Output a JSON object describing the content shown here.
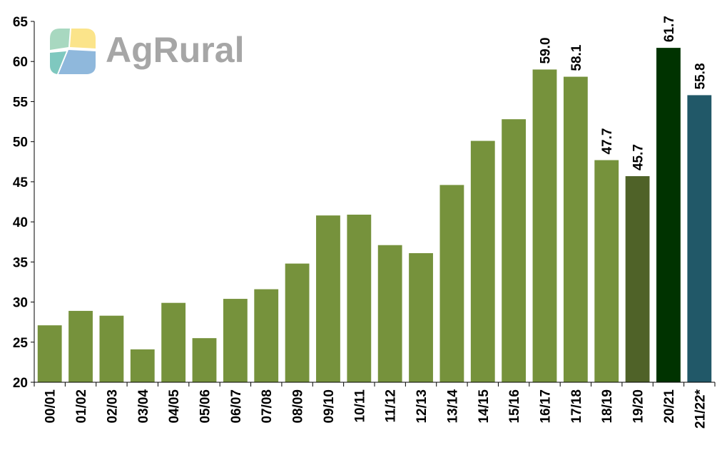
{
  "logo": {
    "text": "AgRural",
    "colors": [
      "#a8d8c0",
      "#fbe48a",
      "#8fb8dc",
      "#7fc8bf"
    ]
  },
  "chart_data": {
    "type": "bar",
    "title": "",
    "xlabel": "",
    "ylabel": "",
    "ylim": [
      20,
      65
    ],
    "yticks": [
      20,
      25,
      30,
      35,
      40,
      45,
      50,
      55,
      60,
      65
    ],
    "grid": false,
    "categories": [
      "00/01",
      "01/02",
      "02/03",
      "03/04",
      "04/05",
      "05/06",
      "06/07",
      "07/08",
      "08/09",
      "09/10",
      "10/11",
      "11/12",
      "12/13",
      "13/14",
      "14/15",
      "15/16",
      "16/17",
      "17/18",
      "18/19",
      "19/20",
      "20/21",
      "21/22*"
    ],
    "values": [
      27.1,
      28.9,
      28.3,
      24.1,
      29.9,
      25.5,
      30.4,
      31.6,
      34.8,
      40.8,
      40.9,
      37.1,
      36.1,
      44.6,
      50.1,
      52.8,
      59.0,
      58.1,
      47.7,
      45.7,
      61.7,
      55.8
    ],
    "data_labels": [
      null,
      null,
      null,
      null,
      null,
      null,
      null,
      null,
      null,
      null,
      null,
      null,
      null,
      null,
      null,
      null,
      "59.0",
      "58.1",
      "47.7",
      "45.7",
      "61.7",
      "55.8"
    ],
    "colors": [
      "#76923c",
      "#76923c",
      "#76923c",
      "#76923c",
      "#76923c",
      "#76923c",
      "#76923c",
      "#76923c",
      "#76923c",
      "#76923c",
      "#76923c",
      "#76923c",
      "#76923c",
      "#76923c",
      "#76923c",
      "#76923c",
      "#76923c",
      "#76923c",
      "#76923c",
      "#4f6228",
      "#003300",
      "#215868"
    ]
  }
}
